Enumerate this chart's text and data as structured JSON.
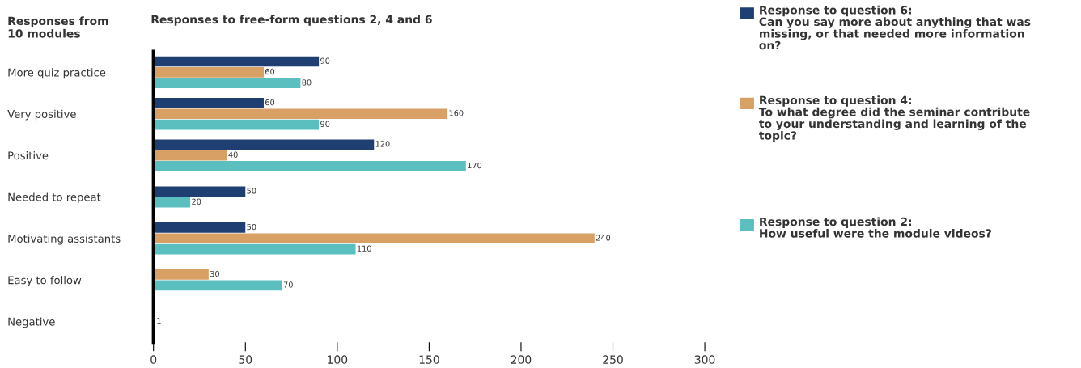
{
  "chart_data": {
    "type": "bar",
    "orientation": "horizontal",
    "title": "Responses to free-form questions 2, 4 and 6",
    "ylabel": "Responses from\n10 modules",
    "categories": [
      "More quiz practice",
      "Very positive",
      "Positive",
      "Needed to repeat",
      "Motivating assistants",
      "Easy to follow",
      "Negative"
    ],
    "series": [
      {
        "name": "Response to question 6:\nCan you say more about anything that was\nmissing, or that needed more information\non?",
        "color": "#1f3f73",
        "values": [
          90,
          60,
          120,
          50,
          50,
          null,
          null
        ]
      },
      {
        "name": "Response to question 4:\nTo what degree did the seminar contribute\nto your understanding and learning of the\ntopic?",
        "color": "#d9a066",
        "values": [
          60,
          160,
          40,
          null,
          240,
          30,
          1
        ]
      },
      {
        "name": "Response to question 2:\nHow useful were the module videos?",
        "color": "#5bbfbf",
        "values": [
          80,
          90,
          170,
          20,
          110,
          70,
          null
        ]
      }
    ],
    "xlim": [
      0,
      300
    ],
    "xticks": [
      0,
      50,
      100,
      150,
      200,
      250,
      300
    ],
    "data_labels": true,
    "grid": false,
    "legend": "right"
  }
}
